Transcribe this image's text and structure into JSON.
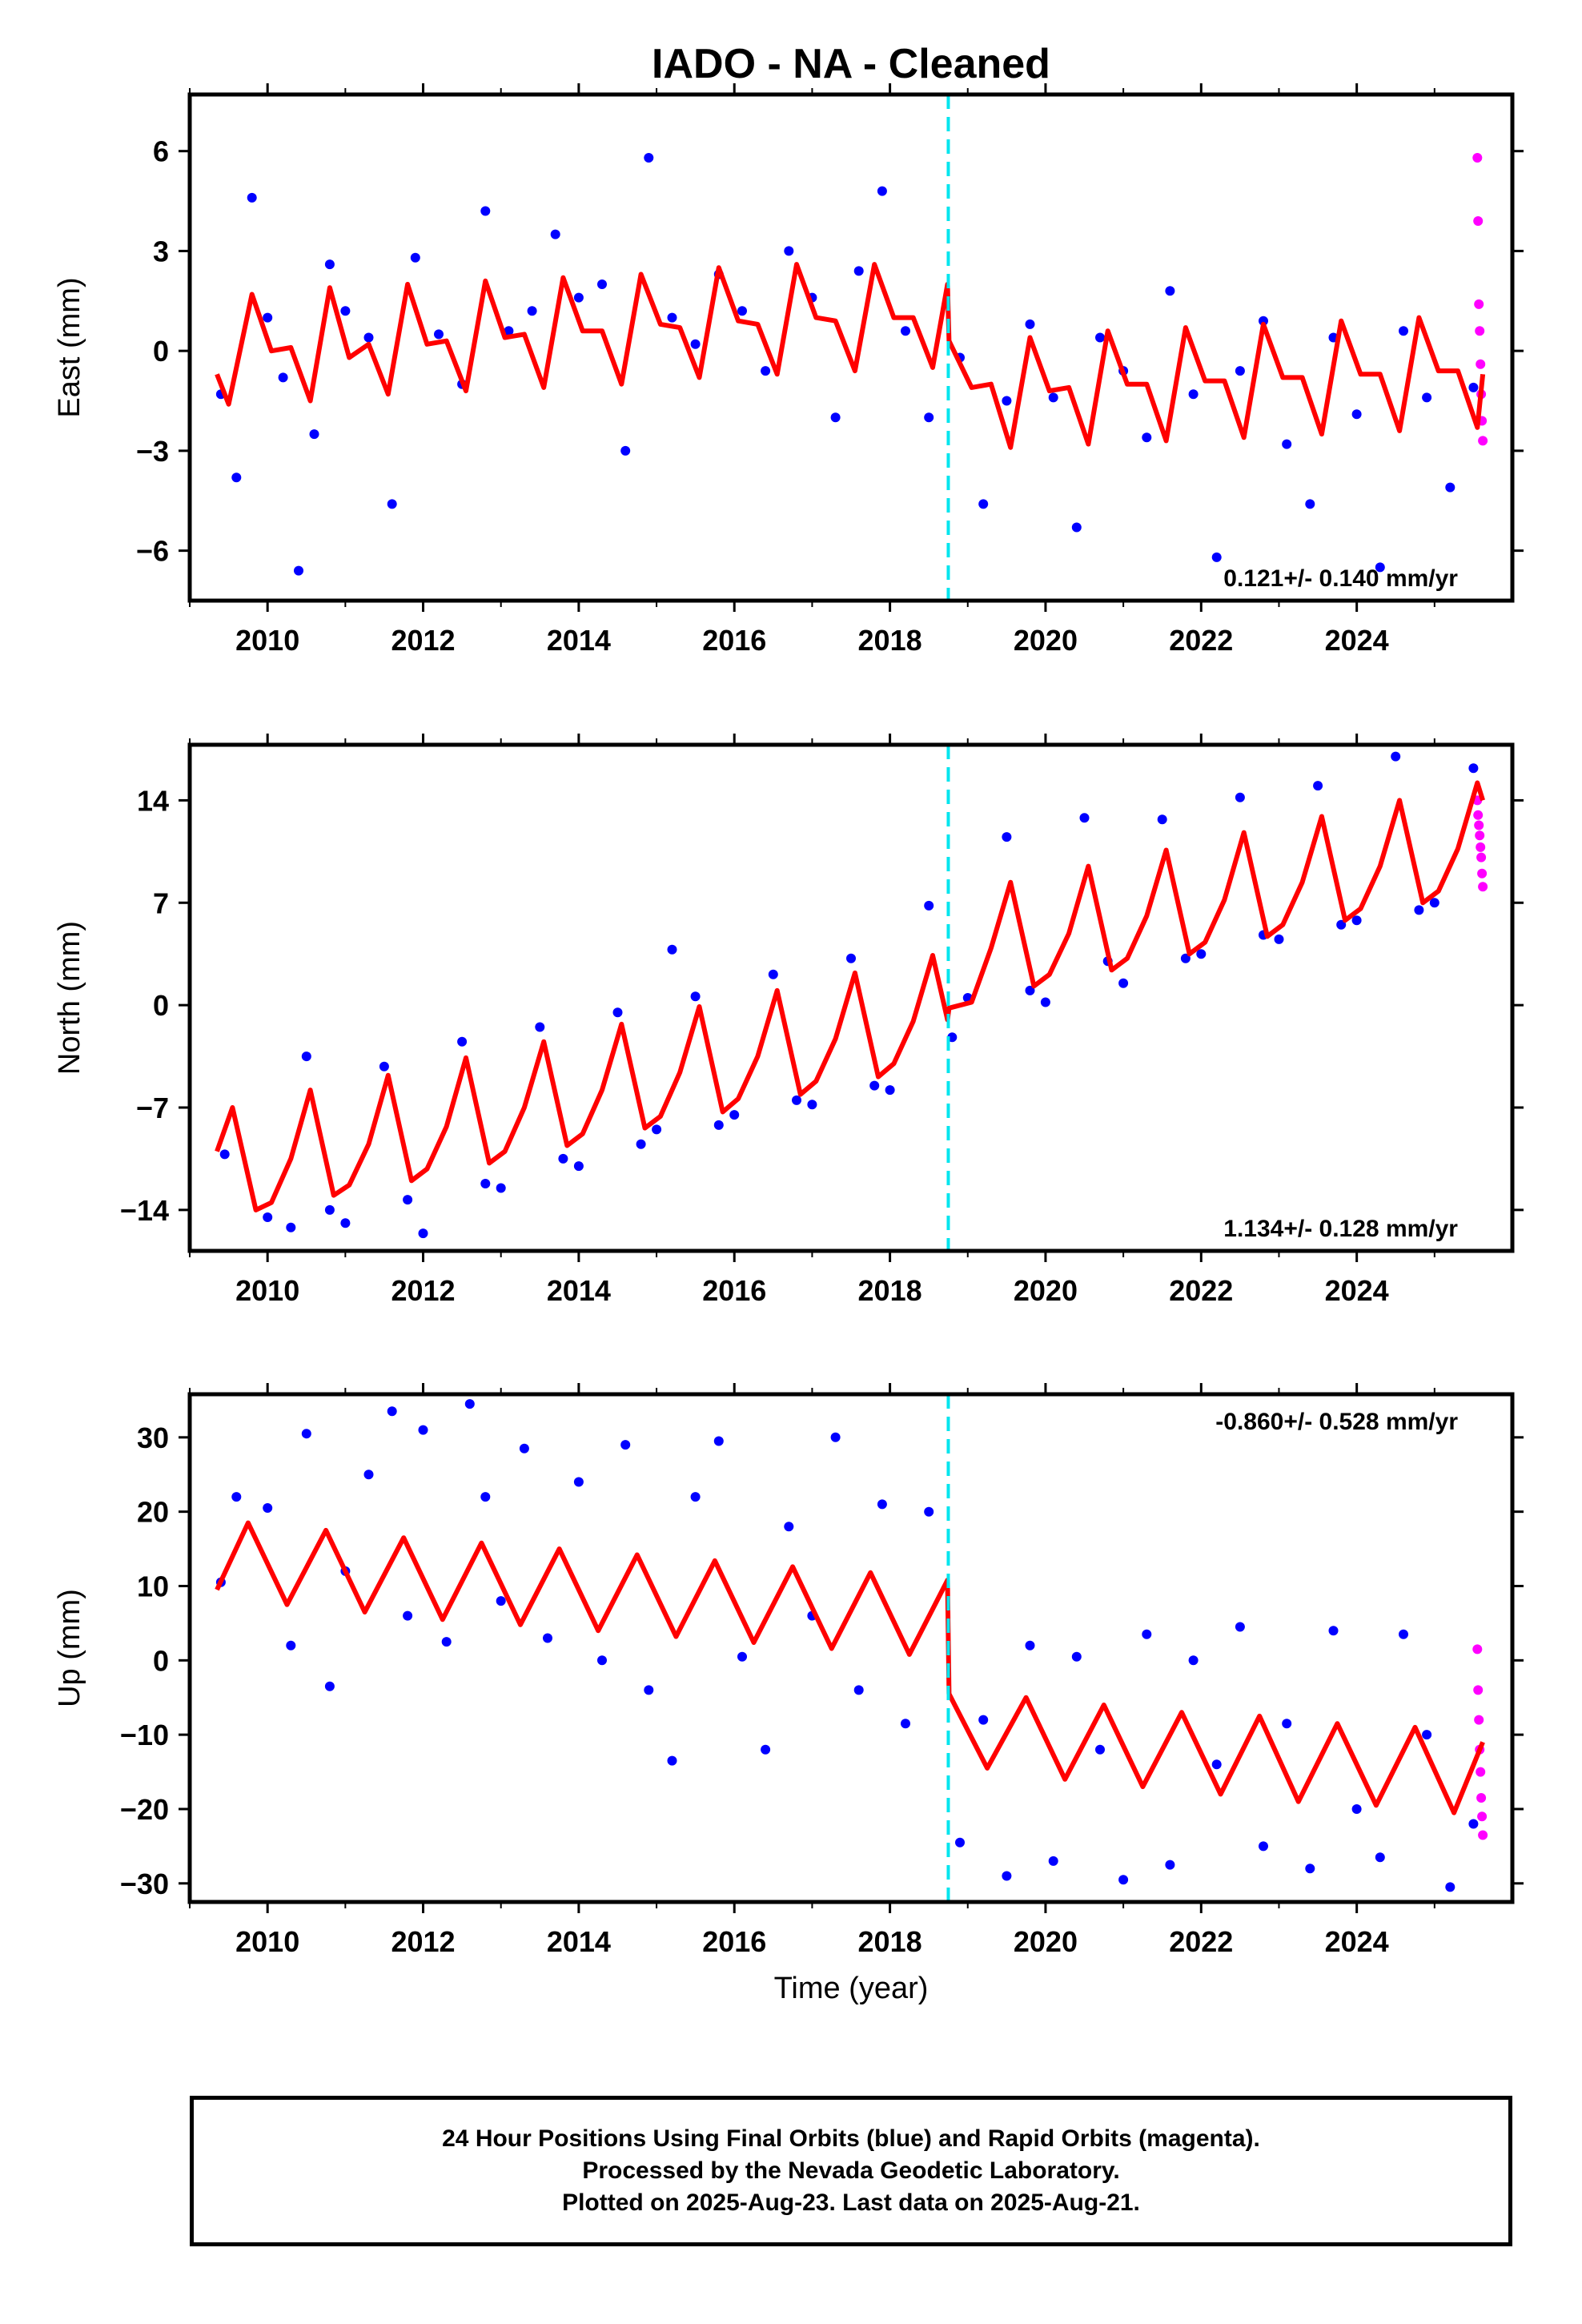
{
  "title": "IADO  - NA - Cleaned",
  "colors": {
    "final_orbits": "#0000ff",
    "rapid_orbits": "#ff00ff",
    "model_fit": "#ff0000",
    "break_line": "#00e5ee",
    "frame": "#000000"
  },
  "footer": {
    "line1": "24 Hour Positions Using Final Orbits (blue) and Rapid Orbits (magenta).",
    "line2": "Processed by the Nevada Geodetic Laboratory.",
    "line3": "Plotted on 2025-Aug-23. Last data on 2025-Aug-21."
  },
  "chart_data": [
    {
      "type": "scatter",
      "component": "east",
      "ylabel": "East (mm)",
      "xlabel": "",
      "xlim": [
        2009.0,
        2026.0
      ],
      "ylim": [
        -7.5,
        7.7
      ],
      "xticks": [
        2010,
        2012,
        2014,
        2016,
        2018,
        2020,
        2022,
        2024
      ],
      "yticks": [
        -6,
        -3,
        0,
        3,
        6
      ],
      "ytick_labels": [
        "−6",
        "−3",
        "0",
        "3",
        "6"
      ],
      "rate_text": "0.121+/- 0.140 mm/yr",
      "rate_position": "bottom-right",
      "break_epoch": 2018.75,
      "series": [
        {
          "role": "final_orbits",
          "color": "#0000ff",
          "x": [
            2009.4,
            2009.6,
            2009.8,
            2010.0,
            2010.2,
            2010.4,
            2010.6,
            2010.8,
            2011.0,
            2011.3,
            2011.6,
            2011.9,
            2012.2,
            2012.5,
            2012.8,
            2013.1,
            2013.4,
            2013.7,
            2014.0,
            2014.3,
            2014.6,
            2014.9,
            2015.2,
            2015.5,
            2015.8,
            2016.1,
            2016.4,
            2016.7,
            2017.0,
            2017.3,
            2017.6,
            2017.9,
            2018.2,
            2018.5,
            2018.9,
            2019.2,
            2019.5,
            2019.8,
            2020.1,
            2020.4,
            2020.7,
            2021.0,
            2021.3,
            2021.6,
            2021.9,
            2022.2,
            2022.5,
            2022.8,
            2023.1,
            2023.4,
            2023.7,
            2024.0,
            2024.3,
            2024.6,
            2024.9,
            2025.2,
            2025.5
          ],
          "y": [
            -1.3,
            -3.8,
            4.6,
            1.0,
            -0.8,
            -6.6,
            -2.5,
            2.6,
            1.2,
            0.4,
            -4.6,
            2.8,
            0.5,
            -1.0,
            4.2,
            0.6,
            1.2,
            3.5,
            1.6,
            2.0,
            -3.0,
            5.8,
            1.0,
            0.2,
            2.3,
            1.2,
            -0.6,
            3.0,
            1.6,
            -2.0,
            2.4,
            4.8,
            0.6,
            -2.0,
            -0.2,
            -4.6,
            -1.5,
            0.8,
            -1.4,
            -5.3,
            0.4,
            -0.6,
            -2.6,
            1.8,
            -1.3,
            -6.2,
            -0.6,
            0.9,
            -2.8,
            -4.6,
            0.4,
            -1.9,
            -6.5,
            0.6,
            -1.4,
            -4.1,
            -1.1
          ]
        },
        {
          "role": "rapid_orbits",
          "color": "#ff00ff",
          "x": [
            2025.55,
            2025.56,
            2025.57,
            2025.58,
            2025.59,
            2025.6,
            2025.61,
            2025.62
          ],
          "y": [
            5.8,
            3.9,
            1.4,
            0.6,
            -0.4,
            -1.3,
            -2.1,
            -2.7
          ]
        }
      ],
      "model_fit": {
        "x": [
          2009.35,
          2009.5,
          2009.8,
          2010.05,
          2010.3,
          2010.55,
          2010.8,
          2011.05,
          2011.3,
          2011.55,
          2011.8,
          2012.05,
          2012.3,
          2012.55,
          2012.8,
          2013.05,
          2013.3,
          2013.55,
          2013.8,
          2014.05,
          2014.3,
          2014.55,
          2014.8,
          2015.05,
          2015.3,
          2015.55,
          2015.8,
          2016.05,
          2016.3,
          2016.55,
          2016.8,
          2017.05,
          2017.3,
          2017.55,
          2017.8,
          2018.05,
          2018.3,
          2018.55,
          2018.74,
          2018.76,
          2019.05,
          2019.3,
          2019.55,
          2019.8,
          2020.05,
          2020.3,
          2020.55,
          2020.8,
          2021.05,
          2021.3,
          2021.55,
          2021.8,
          2022.05,
          2022.3,
          2022.55,
          2022.8,
          2023.05,
          2023.3,
          2023.55,
          2023.8,
          2024.05,
          2024.3,
          2024.55,
          2024.8,
          2025.05,
          2025.3,
          2025.55,
          2025.62
        ],
        "y": [
          -0.7,
          -1.6,
          1.7,
          0.0,
          0.1,
          -1.5,
          1.9,
          -0.2,
          0.2,
          -1.3,
          2.0,
          0.2,
          0.3,
          -1.2,
          2.1,
          0.4,
          0.5,
          -1.1,
          2.2,
          0.6,
          0.6,
          -1.0,
          2.3,
          0.8,
          0.7,
          -0.8,
          2.5,
          0.9,
          0.8,
          -0.7,
          2.6,
          1.0,
          0.9,
          -0.6,
          2.6,
          1.0,
          1.0,
          -0.5,
          2.0,
          0.3,
          -1.1,
          -1.0,
          -2.9,
          0.4,
          -1.2,
          -1.1,
          -2.8,
          0.6,
          -1.0,
          -1.0,
          -2.7,
          0.7,
          -0.9,
          -0.9,
          -2.6,
          0.8,
          -0.8,
          -0.8,
          -2.5,
          0.9,
          -0.7,
          -0.7,
          -2.4,
          1.0,
          -0.6,
          -0.6,
          -2.3,
          -0.7
        ]
      }
    },
    {
      "type": "scatter",
      "component": "north",
      "ylabel": "North (mm)",
      "xlabel": "",
      "xlim": [
        2009.0,
        2026.0
      ],
      "ylim": [
        -16.8,
        17.8
      ],
      "xticks": [
        2010,
        2012,
        2014,
        2016,
        2018,
        2020,
        2022,
        2024
      ],
      "yticks": [
        -14,
        -7,
        0,
        7,
        14
      ],
      "ytick_labels": [
        "−14",
        "−7",
        "0",
        "7",
        "14"
      ],
      "rate_text": "1.134+/- 0.128 mm/yr",
      "rate_position": "bottom-right",
      "break_epoch": 2018.75,
      "series": [
        {
          "role": "final_orbits",
          "color": "#0000ff",
          "x": [
            2009.45,
            2010.0,
            2010.3,
            2010.5,
            2010.8,
            2011.0,
            2011.5,
            2011.8,
            2012.0,
            2012.5,
            2012.8,
            2013.0,
            2013.5,
            2013.8,
            2014.0,
            2014.5,
            2014.8,
            2015.0,
            2015.2,
            2015.5,
            2015.8,
            2016.0,
            2016.5,
            2016.8,
            2017.0,
            2017.5,
            2017.8,
            2018.0,
            2018.5,
            2018.8,
            2019.0,
            2019.5,
            2019.8,
            2020.0,
            2020.5,
            2020.8,
            2021.0,
            2021.5,
            2021.8,
            2022.0,
            2022.5,
            2022.8,
            2023.0,
            2023.5,
            2023.8,
            2024.0,
            2024.5,
            2024.8,
            2025.0,
            2025.5
          ],
          "y": [
            -10.2,
            -14.5,
            -15.2,
            -3.5,
            -14.0,
            -14.9,
            -4.2,
            -13.3,
            -15.6,
            -2.5,
            -12.2,
            -12.5,
            -1.5,
            -10.5,
            -11.0,
            -0.5,
            -9.5,
            -8.5,
            3.8,
            0.6,
            -8.2,
            -7.5,
            2.1,
            -6.5,
            -6.8,
            3.2,
            -5.5,
            -5.8,
            6.8,
            -2.2,
            0.5,
            11.5,
            1.0,
            0.2,
            12.8,
            3.0,
            1.5,
            12.7,
            3.2,
            3.5,
            14.2,
            4.8,
            4.5,
            15.0,
            5.5,
            5.8,
            17.0,
            6.5,
            7.0,
            16.2
          ]
        },
        {
          "role": "rapid_orbits",
          "color": "#ff00ff",
          "x": [
            2025.55,
            2025.56,
            2025.57,
            2025.58,
            2025.59,
            2025.6,
            2025.61,
            2025.62
          ],
          "y": [
            14.0,
            13.0,
            12.3,
            11.6,
            10.8,
            10.1,
            9.0,
            8.1
          ]
        }
      ],
      "model_fit": {
        "x": [
          2009.35,
          2009.55,
          2009.85,
          2010.05,
          2010.3,
          2010.55,
          2010.85,
          2011.05,
          2011.3,
          2011.55,
          2011.85,
          2012.05,
          2012.3,
          2012.55,
          2012.85,
          2013.05,
          2013.3,
          2013.55,
          2013.85,
          2014.05,
          2014.3,
          2014.55,
          2014.85,
          2015.05,
          2015.3,
          2015.55,
          2015.85,
          2016.05,
          2016.3,
          2016.55,
          2016.85,
          2017.05,
          2017.3,
          2017.55,
          2017.85,
          2018.05,
          2018.3,
          2018.55,
          2018.74,
          2018.76,
          2019.05,
          2019.3,
          2019.55,
          2019.85,
          2020.05,
          2020.3,
          2020.55,
          2020.85,
          2021.05,
          2021.3,
          2021.55,
          2021.85,
          2022.05,
          2022.3,
          2022.55,
          2022.85,
          2023.05,
          2023.3,
          2023.55,
          2023.85,
          2024.05,
          2024.3,
          2024.55,
          2024.85,
          2025.05,
          2025.3,
          2025.55,
          2025.62
        ],
        "y": [
          -10.0,
          -7.0,
          -14.0,
          -13.5,
          -10.5,
          -5.8,
          -13.0,
          -12.3,
          -9.5,
          -4.8,
          -12.0,
          -11.2,
          -8.3,
          -3.6,
          -10.8,
          -10.0,
          -7.0,
          -2.5,
          -9.6,
          -8.8,
          -5.8,
          -1.3,
          -8.4,
          -7.6,
          -4.6,
          -0.1,
          -7.3,
          -6.4,
          -3.5,
          1.0,
          -6.1,
          -5.2,
          -2.3,
          2.2,
          -4.9,
          -4.0,
          -1.1,
          3.4,
          -1.0,
          -0.2,
          0.2,
          3.9,
          8.4,
          1.3,
          2.1,
          4.9,
          9.5,
          2.4,
          3.2,
          6.1,
          10.6,
          3.5,
          4.3,
          7.2,
          11.8,
          4.7,
          5.5,
          8.4,
          12.9,
          5.8,
          6.6,
          9.5,
          14.0,
          7.0,
          7.8,
          10.7,
          15.2,
          14.0
        ]
      }
    },
    {
      "type": "scatter",
      "component": "up",
      "ylabel": "Up (mm)",
      "xlabel": "Time (year)",
      "xlim": [
        2009.0,
        2026.0
      ],
      "ylim": [
        -32.5,
        35.8
      ],
      "xticks": [
        2010,
        2012,
        2014,
        2016,
        2018,
        2020,
        2022,
        2024
      ],
      "yticks": [
        -30,
        -20,
        -10,
        0,
        10,
        20,
        30
      ],
      "ytick_labels": [
        "−30",
        "−20",
        "−10",
        "0",
        "10",
        "20",
        "30"
      ],
      "rate_text": "-0.860+/- 0.528 mm/yr",
      "rate_position": "top-right",
      "break_epoch": 2018.75,
      "series": [
        {
          "role": "final_orbits",
          "color": "#0000ff",
          "x": [
            2009.4,
            2009.6,
            2010.0,
            2010.3,
            2010.5,
            2010.8,
            2011.0,
            2011.3,
            2011.6,
            2011.8,
            2012.0,
            2012.3,
            2012.6,
            2012.8,
            2013.0,
            2013.3,
            2013.6,
            2014.0,
            2014.3,
            2014.6,
            2014.9,
            2015.2,
            2015.5,
            2015.8,
            2016.1,
            2016.4,
            2016.7,
            2017.0,
            2017.3,
            2017.6,
            2017.9,
            2018.2,
            2018.5,
            2018.9,
            2019.2,
            2019.5,
            2019.8,
            2020.1,
            2020.4,
            2020.7,
            2021.0,
            2021.3,
            2021.6,
            2021.9,
            2022.2,
            2022.5,
            2022.8,
            2023.1,
            2023.4,
            2023.7,
            2024.0,
            2024.3,
            2024.6,
            2024.9,
            2025.2,
            2025.5
          ],
          "y": [
            10.5,
            22.0,
            20.5,
            2.0,
            30.5,
            -3.5,
            12.0,
            25.0,
            33.5,
            6.0,
            31.0,
            2.5,
            34.5,
            22.0,
            8.0,
            28.5,
            3.0,
            24.0,
            0.0,
            29.0,
            -4.0,
            -13.5,
            22.0,
            29.5,
            0.5,
            -12.0,
            18.0,
            6.0,
            30.0,
            -4.0,
            21.0,
            -8.5,
            20.0,
            -24.5,
            -8.0,
            -29.0,
            2.0,
            -27.0,
            0.5,
            -12.0,
            -29.5,
            3.5,
            -27.5,
            0.0,
            -14.0,
            4.5,
            -25.0,
            -8.5,
            -28.0,
            4.0,
            -20.0,
            -26.5,
            3.5,
            -10.0,
            -30.5,
            -22.0
          ]
        },
        {
          "role": "rapid_orbits",
          "color": "#ff00ff",
          "x": [
            2025.55,
            2025.56,
            2025.57,
            2025.58,
            2025.59,
            2025.6,
            2025.61,
            2025.62
          ],
          "y": [
            1.5,
            -4.0,
            -8.0,
            -12.0,
            -15.0,
            -18.5,
            -21.0,
            -23.5
          ]
        }
      ],
      "model_fit": {
        "x": [
          2009.35,
          2009.75,
          2010.25,
          2010.75,
          2011.25,
          2011.75,
          2012.25,
          2012.75,
          2013.25,
          2013.75,
          2014.25,
          2014.75,
          2015.25,
          2015.75,
          2016.25,
          2016.75,
          2017.25,
          2017.75,
          2018.25,
          2018.74,
          2018.76,
          2019.25,
          2019.75,
          2020.25,
          2020.75,
          2021.25,
          2021.75,
          2022.25,
          2022.75,
          2023.25,
          2023.75,
          2024.25,
          2024.75,
          2025.25,
          2025.62
        ],
        "y": [
          9.5,
          18.5,
          7.5,
          17.5,
          6.5,
          16.5,
          5.5,
          15.8,
          4.8,
          15.0,
          4.0,
          14.2,
          3.2,
          13.4,
          2.4,
          12.6,
          1.6,
          11.8,
          0.8,
          10.8,
          -4.5,
          -14.5,
          -5.0,
          -16.0,
          -6.0,
          -17.0,
          -7.0,
          -18.0,
          -7.5,
          -19.0,
          -8.5,
          -19.5,
          -9.0,
          -20.5,
          -11.0
        ]
      }
    }
  ]
}
